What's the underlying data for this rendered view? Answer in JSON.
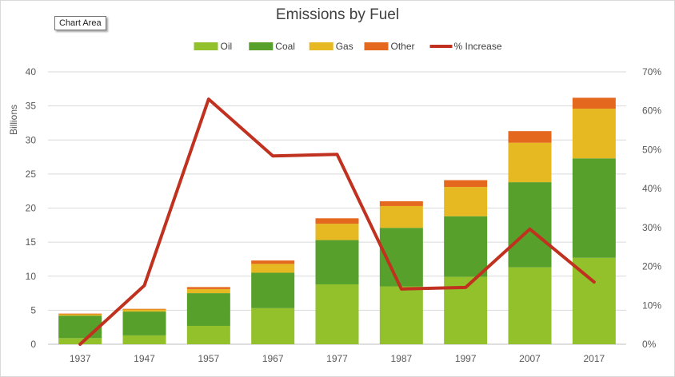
{
  "chart_area_tooltip": "Chart Area",
  "chart_data": {
    "type": "bar",
    "stacked": true,
    "title": "Emissions by Fuel",
    "ylabel": "Billions",
    "categories": [
      "1937",
      "1947",
      "1957",
      "1967",
      "1977",
      "1987",
      "1997",
      "2007",
      "2017"
    ],
    "ylim": [
      0,
      40
    ],
    "y_ticks": [
      0,
      5,
      10,
      15,
      20,
      25,
      30,
      35,
      40
    ],
    "y2lim": [
      0,
      70
    ],
    "y2_ticks": [
      "0%",
      "10%",
      "20%",
      "30%",
      "40%",
      "50%",
      "60%",
      "70%"
    ],
    "series": [
      {
        "name": "Oil",
        "color": "#92c12c",
        "values": [
          0.9,
          1.3,
          2.7,
          5.3,
          8.8,
          8.5,
          9.9,
          11.3,
          12.7
        ]
      },
      {
        "name": "Coal",
        "color": "#56a02b",
        "values": [
          3.3,
          3.5,
          4.8,
          5.2,
          6.5,
          8.6,
          8.9,
          12.5,
          14.6
        ]
      },
      {
        "name": "Gas",
        "color": "#e6b922",
        "values": [
          0.2,
          0.3,
          0.6,
          1.3,
          2.4,
          3.2,
          4.3,
          5.8,
          7.3
        ]
      },
      {
        "name": "Other",
        "color": "#e4681e",
        "values": [
          0.1,
          0.1,
          0.3,
          0.5,
          0.8,
          0.7,
          1.0,
          1.7,
          1.6
        ]
      }
    ],
    "line_series": {
      "name": "% Increase",
      "color": "#c0321f",
      "axis": "right",
      "values": [
        0,
        15.1,
        63.0,
        48.4,
        48.8,
        14.2,
        14.6,
        29.6,
        16.0
      ]
    },
    "grid": true,
    "legend_position": "top"
  }
}
